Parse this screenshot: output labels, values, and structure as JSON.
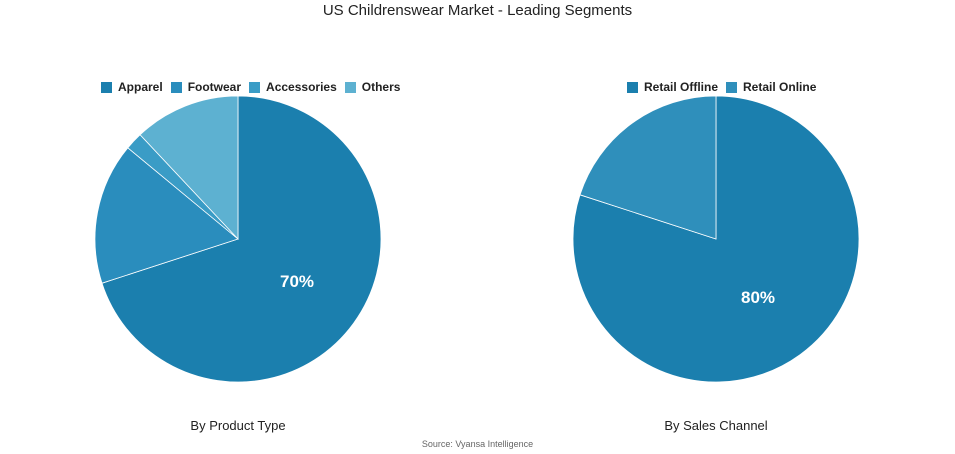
{
  "title": "US Childrenswear Market - Leading Segments",
  "source": "Source: Vyansa Intelligence",
  "chart_data": [
    {
      "type": "pie",
      "subtitle": "By Product Type",
      "legend_position": "top",
      "categories": [
        "Apparel",
        "Footwear",
        "Accessories",
        "Others"
      ],
      "values": [
        70,
        16,
        2,
        12
      ],
      "colors": [
        "#1b7fae",
        "#2a8dbd",
        "#3a9cc6",
        "#5db1d1"
      ],
      "labels": [
        "70%",
        "",
        "",
        ""
      ]
    },
    {
      "type": "pie",
      "subtitle": "By Sales Channel",
      "legend_position": "top",
      "categories": [
        "Retail Offline",
        "Retail Online"
      ],
      "values": [
        80,
        20
      ],
      "colors": [
        "#1b7fae",
        "#2f8fbb"
      ],
      "labels": [
        "80%",
        ""
      ]
    }
  ]
}
